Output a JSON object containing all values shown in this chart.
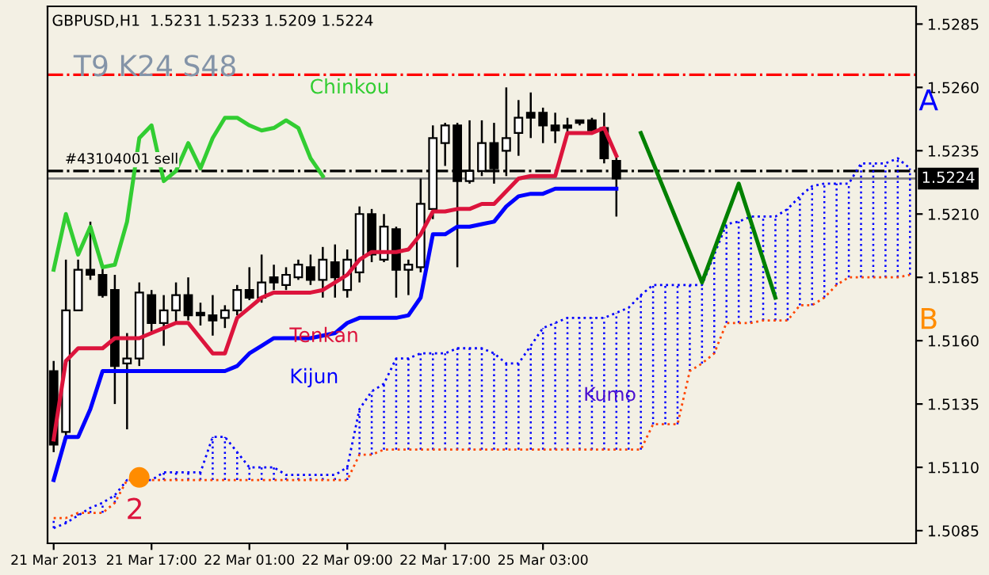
{
  "chart_data": {
    "type": "candlestick",
    "title": "GBPUSD,H1  1.5231 1.5233 1.5209 1.5224",
    "categories": [
      "21 Mar 2013",
      null,
      null,
      null,
      null,
      null,
      null,
      null,
      "21 Mar 17:00",
      null,
      null,
      null,
      null,
      null,
      null,
      null,
      "22 Mar 01:00",
      null,
      null,
      null,
      null,
      null,
      null,
      null,
      "22 Mar 09:00",
      null,
      null,
      null,
      null,
      null,
      null,
      null,
      "22 Mar 17:00",
      null,
      null,
      null,
      null,
      null,
      null,
      null,
      "25 Mar 03:00",
      null,
      null,
      null,
      null,
      null,
      null,
      null,
      null,
      null,
      null,
      null,
      null,
      null,
      null,
      null,
      null,
      null,
      null,
      null,
      null,
      null,
      null,
      null,
      null,
      null,
      null,
      null,
      null,
      null,
      null
    ],
    "ohlc": [
      [
        1.5148,
        1.5152,
        1.5116,
        1.5119
      ],
      [
        1.5124,
        1.5192,
        1.5122,
        1.5172
      ],
      [
        1.5172,
        1.5192,
        1.5172,
        1.5188
      ],
      [
        1.5188,
        1.5207,
        1.5184,
        1.5186
      ],
      [
        1.5186,
        1.519,
        1.5177,
        1.5178
      ],
      [
        1.518,
        1.5186,
        1.5135,
        1.515
      ],
      [
        1.5151,
        1.5163,
        1.5125,
        1.5153
      ],
      [
        1.5153,
        1.5183,
        1.515,
        1.5179
      ],
      [
        1.5178,
        1.518,
        1.5163,
        1.5167
      ],
      [
        1.5167,
        1.5178,
        1.5158,
        1.5172
      ],
      [
        1.5172,
        1.5183,
        1.5167,
        1.5178
      ],
      [
        1.5178,
        1.5185,
        1.5168,
        1.517
      ],
      [
        1.5171,
        1.5175,
        1.5166,
        1.517
      ],
      [
        1.517,
        1.5178,
        1.5162,
        1.5168
      ],
      [
        1.5169,
        1.5174,
        1.5165,
        1.5172
      ],
      [
        1.5172,
        1.5182,
        1.517,
        1.518
      ],
      [
        1.518,
        1.5189,
        1.5176,
        1.5177
      ],
      [
        1.5177,
        1.5194,
        1.5175,
        1.5183
      ],
      [
        1.5185,
        1.519,
        1.518,
        1.5183
      ],
      [
        1.5182,
        1.5189,
        1.518,
        1.5186
      ],
      [
        1.5185,
        1.5192,
        1.5184,
        1.519
      ],
      [
        1.5189,
        1.5194,
        1.5182,
        1.5184
      ],
      [
        1.5184,
        1.5197,
        1.5177,
        1.5192
      ],
      [
        1.5191,
        1.5198,
        1.5177,
        1.5185
      ],
      [
        1.518,
        1.5196,
        1.5177,
        1.5192
      ],
      [
        1.5187,
        1.5213,
        1.5183,
        1.521
      ],
      [
        1.521,
        1.5212,
        1.5191,
        1.5194
      ],
      [
        1.5192,
        1.521,
        1.5191,
        1.5205
      ],
      [
        1.5204,
        1.5205,
        1.5177,
        1.5188
      ],
      [
        1.5188,
        1.5192,
        1.5178,
        1.519
      ],
      [
        1.5189,
        1.5224,
        1.5187,
        1.5214
      ],
      [
        1.5212,
        1.5245,
        1.5208,
        1.524
      ],
      [
        1.5238,
        1.5246,
        1.5229,
        1.5245
      ],
      [
        1.5245,
        1.5246,
        1.5189,
        1.5223
      ],
      [
        1.5223,
        1.5247,
        1.5222,
        1.5227
      ],
      [
        1.5227,
        1.5247,
        1.5225,
        1.5238
      ],
      [
        1.5238,
        1.5246,
        1.5222,
        1.5228
      ],
      [
        1.5235,
        1.526,
        1.5225,
        1.524
      ],
      [
        1.5242,
        1.5255,
        1.5233,
        1.5248
      ],
      [
        1.525,
        1.5258,
        1.524,
        1.5248
      ],
      [
        1.525,
        1.5252,
        1.5238,
        1.5245
      ],
      [
        1.5245,
        1.525,
        1.5238,
        1.5243
      ],
      [
        1.5245,
        1.5248,
        1.5242,
        1.5244
      ],
      [
        1.5247,
        1.5247,
        1.5245,
        1.5246
      ],
      [
        1.5247,
        1.5248,
        1.5242,
        1.5243
      ],
      [
        1.5244,
        1.525,
        1.523,
        1.5232
      ],
      [
        1.5231,
        1.5233,
        1.5209,
        1.5224
      ],
      null,
      null,
      null,
      null,
      null,
      null,
      null,
      null,
      null,
      null,
      null,
      null,
      null,
      null,
      null,
      null,
      null,
      null,
      null,
      null,
      null,
      null,
      null,
      null
    ],
    "series": [
      {
        "name": "Tenkan",
        "type": "line",
        "color": "#dc143c",
        "line_style": "solid",
        "values": [
          1.5121,
          1.5152,
          1.5157,
          1.5157,
          1.5157,
          1.5161,
          1.5161,
          1.5161,
          1.5163,
          1.5165,
          1.5167,
          1.5167,
          1.5161,
          1.5155,
          1.5155,
          1.5169,
          1.5173,
          1.5177,
          1.5179,
          1.5179,
          1.5179,
          1.5179,
          1.518,
          1.5183,
          1.5186,
          1.5192,
          1.5195,
          1.5195,
          1.5195,
          1.5196,
          1.5202,
          1.5211,
          1.5211,
          1.5212,
          1.5212,
          1.5214,
          1.5214,
          1.5219,
          1.5224,
          1.5225,
          1.5225,
          1.5225,
          1.5242,
          1.5242,
          1.5242,
          1.5244,
          1.5233,
          null,
          null,
          null,
          null,
          null,
          null,
          null,
          null,
          null,
          null,
          null,
          null,
          null,
          null,
          null,
          null,
          null,
          null,
          null,
          null,
          null,
          null,
          null,
          null
        ]
      },
      {
        "name": "Kijun",
        "type": "line",
        "color": "#0000ff",
        "line_style": "solid",
        "values": [
          1.5105,
          1.5122,
          1.5122,
          1.5133,
          1.5148,
          1.5148,
          1.5148,
          1.5148,
          1.5148,
          1.5148,
          1.5148,
          1.5148,
          1.5148,
          1.5148,
          1.5148,
          1.515,
          1.5155,
          1.5158,
          1.5161,
          1.5161,
          1.5161,
          1.5161,
          1.5162,
          1.5163,
          1.5167,
          1.5169,
          1.5169,
          1.5169,
          1.5169,
          1.517,
          1.5177,
          1.5202,
          1.5202,
          1.5205,
          1.5205,
          1.5206,
          1.5207,
          1.5213,
          1.5217,
          1.5218,
          1.5218,
          1.522,
          1.522,
          1.522,
          1.522,
          1.522,
          1.522,
          null,
          null,
          null,
          null,
          null,
          null,
          null,
          null,
          null,
          null,
          null,
          null,
          null,
          null,
          null,
          null,
          null,
          null,
          null,
          null,
          null,
          null,
          null,
          null
        ]
      },
      {
        "name": "Chinkou",
        "type": "line",
        "color": "#32cd32",
        "line_style": "solid",
        "values": [
          1.5188,
          1.521,
          1.5194,
          1.5205,
          1.5189,
          1.519,
          1.5207,
          1.524,
          1.5245,
          1.5223,
          1.5227,
          1.5238,
          1.5228,
          1.524,
          1.5248,
          1.5248,
          1.5245,
          1.5243,
          1.5244,
          1.5247,
          1.5244,
          1.5232,
          1.5225,
          null,
          null,
          null,
          null,
          null,
          null,
          null,
          null,
          null,
          null,
          null,
          null,
          null,
          null,
          null,
          null,
          null,
          null,
          null,
          null,
          null,
          null,
          null,
          null,
          null,
          null,
          null,
          null,
          null,
          null,
          null,
          null,
          null,
          null,
          null,
          null,
          null,
          null,
          null,
          null,
          null,
          null,
          null,
          null,
          null,
          null,
          null,
          null
        ]
      },
      {
        "name": "A",
        "type": "line",
        "color": "#0000ff",
        "line_style": "dotted",
        "values": [
          1.5086,
          1.5088,
          1.5091,
          1.5094,
          1.5096,
          1.5099,
          1.5105,
          1.5105,
          1.5105,
          1.5108,
          1.5108,
          1.5108,
          1.5108,
          1.5122,
          1.5122,
          1.5116,
          1.511,
          1.511,
          1.511,
          1.5107,
          1.5107,
          1.5107,
          1.5107,
          1.5107,
          1.511,
          1.5133,
          1.514,
          1.5143,
          1.5153,
          1.5153,
          1.5155,
          1.5155,
          1.5155,
          1.5157,
          1.5157,
          1.5157,
          1.5155,
          1.5151,
          1.5151,
          1.5158,
          1.5165,
          1.5167,
          1.5169,
          1.5169,
          1.5169,
          1.5169,
          1.5171,
          1.5173,
          1.5178,
          1.5182,
          1.5182,
          1.5182,
          1.5182,
          1.5182,
          1.5194,
          1.5206,
          1.5207,
          1.5209,
          1.5209,
          1.5209,
          1.5212,
          1.5217,
          1.5221,
          1.5222,
          1.5222,
          1.5222,
          1.523,
          1.523,
          1.523,
          1.5232,
          1.5228
        ]
      },
      {
        "name": "B",
        "type": "line",
        "color": "#ff4500",
        "line_style": "dotted",
        "values": [
          1.509,
          1.509,
          1.5092,
          1.5092,
          1.5092,
          1.5096,
          1.5105,
          1.5105,
          1.5105,
          1.5105,
          1.5105,
          1.5105,
          1.5105,
          1.5105,
          1.5105,
          1.5105,
          1.5105,
          1.5105,
          1.5105,
          1.5105,
          1.5105,
          1.5105,
          1.5105,
          1.5105,
          1.5105,
          1.5115,
          1.5115,
          1.5117,
          1.5117,
          1.5117,
          1.5117,
          1.5117,
          1.5117,
          1.5117,
          1.5117,
          1.5117,
          1.5117,
          1.5117,
          1.5117,
          1.5117,
          1.5117,
          1.5117,
          1.5117,
          1.5117,
          1.5117,
          1.5117,
          1.5117,
          1.5117,
          1.5117,
          1.5127,
          1.5127,
          1.5127,
          1.5148,
          1.5151,
          1.5155,
          1.5167,
          1.5167,
          1.5167,
          1.5168,
          1.5168,
          1.5168,
          1.5174,
          1.5174,
          1.5177,
          1.5182,
          1.5185,
          1.5185,
          1.5185,
          1.5185,
          1.5185,
          1.5186
        ]
      },
      {
        "type": "line",
        "color": "#008000",
        "line_style": "solid",
        "values": [
          null,
          null,
          null,
          null,
          null,
          null,
          null,
          null,
          null,
          null,
          null,
          null,
          null,
          null,
          null,
          null,
          null,
          null,
          null,
          null,
          null,
          null,
          null,
          null,
          null,
          null,
          null,
          null,
          null,
          null,
          null,
          null,
          null,
          null,
          null,
          null,
          null,
          null,
          null,
          null,
          null,
          null,
          null,
          null,
          null,
          null,
          null,
          null,
          1.5242,
          null,
          null,
          null,
          null,
          1.5183,
          null,
          null,
          1.5222,
          null,
          null,
          1.5177,
          null,
          null,
          null,
          null,
          null,
          null,
          null,
          null,
          null,
          null,
          null
        ]
      },
      {
        "type": "scatter",
        "color": "#ff8c00",
        "marker": "circle",
        "values": [
          null,
          null,
          null,
          null,
          null,
          null,
          null,
          1.5106,
          null,
          null,
          null,
          null,
          null,
          null,
          null,
          null,
          null,
          null,
          null,
          null,
          null,
          null,
          null,
          null,
          null,
          null,
          null,
          null,
          null,
          null,
          null,
          null,
          null,
          null,
          null,
          null,
          null,
          null,
          null,
          null,
          null,
          null,
          null,
          null,
          null,
          null,
          null,
          null,
          null,
          null,
          null,
          null,
          null,
          null,
          null,
          null,
          null,
          null,
          null,
          null,
          null,
          null,
          null,
          null,
          null,
          null,
          null,
          null,
          null,
          null,
          null
        ]
      }
    ],
    "annotations": [
      "T9 K24 S48",
      "Kumo",
      "2"
    ],
    "ref_lines": [
      {
        "axis": "y",
        "value": 1.5265,
        "color": "#ff0000",
        "line_style": "dashdot"
      },
      {
        "axis": "y",
        "value": 1.5227,
        "label": "#43104001 sell",
        "color": "#000000",
        "line_style": "dashdot"
      },
      {
        "axis": "y",
        "value": 1.5224,
        "label": "1.5224",
        "color": "#808080",
        "line_style": "solid"
      }
    ],
    "ylim": [
      1.508,
      1.5292
    ],
    "yticks": [
      1.5085,
      {
        "value": 1.511,
        "label": "1.5110"
      },
      1.5135,
      {
        "value": 1.516,
        "label": "1.5160"
      },
      1.5185,
      {
        "value": 1.521,
        "label": "1.5210"
      },
      1.5235,
      {
        "value": 1.526,
        "label": "1.5260"
      },
      1.5285
    ],
    "grid": false,
    "legend": false
  }
}
